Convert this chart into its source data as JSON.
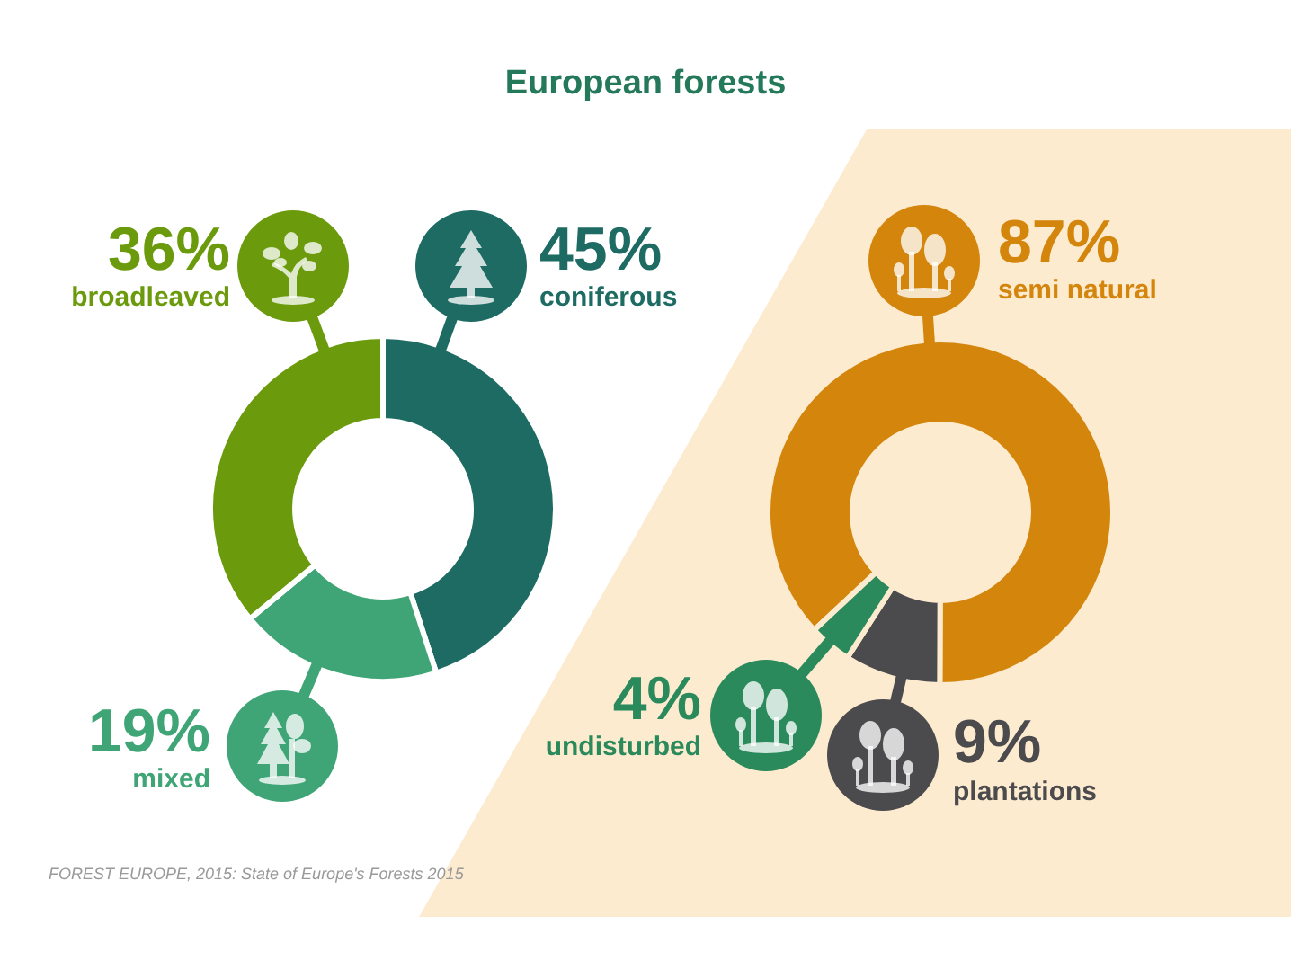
{
  "chart_data": [
    {
      "type": "donut",
      "title": "European forests",
      "categories": [
        "coniferous",
        "mixed",
        "broadleaved"
      ],
      "values": [
        45,
        19,
        36
      ],
      "colors": [
        "#1d6b62",
        "#3fa576",
        "#6b9b0d"
      ],
      "value_labels": [
        "45%",
        "19%",
        "36%"
      ],
      "legend": false,
      "annotations": [
        "FOREST EUROPE, 2015: State of Europe's Forests 2015"
      ]
    },
    {
      "type": "donut",
      "categories": [
        "semi natural",
        "plantations",
        "undisturbed"
      ],
      "values": [
        87,
        9,
        4
      ],
      "colors": [
        "#d4850c",
        "#4b4b4e",
        "#2a8a5c"
      ],
      "value_labels": [
        "87%",
        "9%",
        "4%"
      ],
      "legend": false
    }
  ]
}
